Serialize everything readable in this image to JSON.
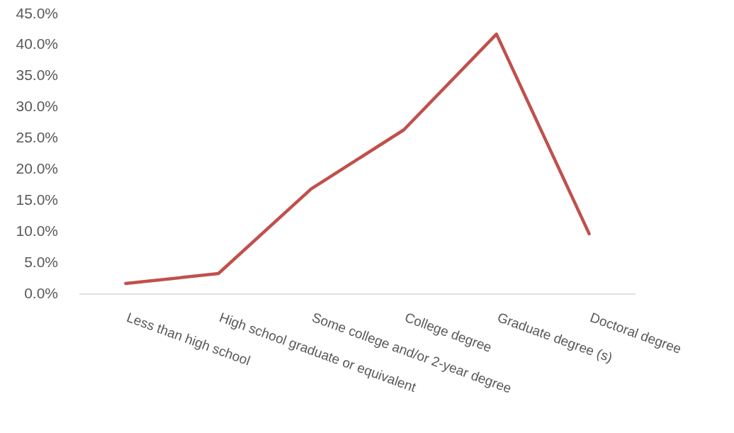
{
  "chart_data": {
    "type": "line",
    "categories": [
      "Less than high school",
      "High school graduate or equivalent",
      "Some college and/or 2-year degree",
      "College degree",
      "Graduate degree (s)",
      "Doctoral degree"
    ],
    "series": [
      {
        "color": "#c0504d",
        "values": [
          1.7,
          3.3,
          16.9,
          26.4,
          41.8,
          9.7
        ]
      }
    ],
    "ylim": [
      0,
      45
    ],
    "yticks": [
      {
        "value": 0,
        "label": "0.0%"
      },
      {
        "value": 5,
        "label": "5.0%"
      },
      {
        "value": 10,
        "label": "10.0%"
      },
      {
        "value": 15,
        "label": "15.0%"
      },
      {
        "value": 20,
        "label": "20.0%"
      },
      {
        "value": 25,
        "label": "25.0%"
      },
      {
        "value": 30,
        "label": "30.0%"
      },
      {
        "value": 35,
        "label": "35.0%"
      },
      {
        "value": 40,
        "label": "40.0%"
      },
      {
        "value": 45,
        "label": "45.0%"
      }
    ],
    "grid": false,
    "marker": "none",
    "line_style": "solid"
  }
}
